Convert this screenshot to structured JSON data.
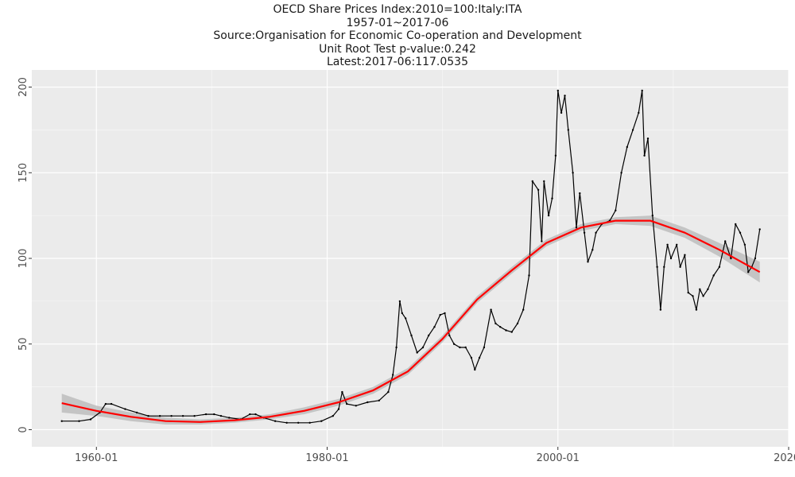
{
  "chart": {
    "title_lines": [
      "OECD Share Prices Index:2010=100:Italy:ITA",
      "1957-01~2017-06",
      "Source:Organisation for Economic Co-operation and Development",
      "Unit Root Test p-value:0.242",
      "Latest:2017-06:117.0535"
    ]
  },
  "colors": {
    "panel_background": "#ebebeb",
    "grid_major": "#ffffff",
    "series_line": "#000000",
    "trend_line": "#ff0000",
    "confidence_band": "#bdbdbd"
  },
  "chart_data": {
    "type": "line",
    "title": "OECD Share Prices Index:2010=100:Italy:ITA",
    "subtitle": [
      "1957-01~2017-06",
      "Source:Organisation for Economic Co-operation and Development",
      "Unit Root Test p-value:0.242",
      "Latest:2017-06:117.0535"
    ],
    "xlabel": "",
    "ylabel": "",
    "x_ticks": [
      "1960-01",
      "1980-01",
      "2000-01",
      "2020-"
    ],
    "x_tick_years": [
      1960,
      1980,
      2000,
      2020
    ],
    "y_ticks": [
      0,
      50,
      100,
      150,
      200
    ],
    "xlim": [
      1954.4,
      2020.0
    ],
    "ylim": [
      -10,
      210
    ],
    "grid": true,
    "legend": "none",
    "series": [
      {
        "kind": "monthly-index",
        "x": [
          1957.0,
          1958.5,
          1959.5,
          1960.3,
          1960.8,
          1961.3,
          1962.5,
          1963.5,
          1964.5,
          1965.5,
          1966.5,
          1967.5,
          1968.5,
          1969.5,
          1970.2,
          1970.8,
          1971.5,
          1972.5,
          1973.3,
          1973.8,
          1974.5,
          1975.5,
          1976.5,
          1977.5,
          1978.5,
          1979.5,
          1980.5,
          1981.0,
          1981.3,
          1981.7,
          1982.5,
          1983.5,
          1984.5,
          1985.3,
          1985.7,
          1986.0,
          1986.3,
          1986.5,
          1986.8,
          1987.3,
          1987.8,
          1988.3,
          1988.8,
          1989.3,
          1989.8,
          1990.2,
          1990.6,
          1991.0,
          1991.5,
          1992.0,
          1992.5,
          1992.8,
          1993.2,
          1993.6,
          1994.2,
          1994.6,
          1995.0,
          1995.5,
          1996.0,
          1996.5,
          1997.0,
          1997.5,
          1997.8,
          1998.3,
          1998.6,
          1998.8,
          1999.2,
          1999.5,
          1999.8,
          2000.0,
          2000.3,
          2000.6,
          2000.9,
          2001.3,
          2001.6,
          2001.9,
          2002.3,
          2002.6,
          2003.0,
          2003.3,
          2003.8,
          2004.5,
          2005.0,
          2005.5,
          2006.0,
          2006.5,
          2007.0,
          2007.3,
          2007.5,
          2007.8,
          2008.2,
          2008.6,
          2008.9,
          2009.2,
          2009.5,
          2009.8,
          2010.3,
          2010.6,
          2011.0,
          2011.3,
          2011.7,
          2012.0,
          2012.3,
          2012.6,
          2013.0,
          2013.5,
          2014.0,
          2014.5,
          2015.0,
          2015.4,
          2015.8,
          2016.2,
          2016.5,
          2016.8,
          2017.1,
          2017.5
        ],
        "values": [
          5,
          5,
          6,
          10,
          15,
          15,
          12,
          10,
          8,
          8,
          8,
          8,
          8,
          9,
          9,
          8,
          7,
          6,
          9,
          9,
          7,
          5,
          4,
          4,
          4,
          5,
          8,
          12,
          22,
          15,
          14,
          16,
          17,
          22,
          32,
          48,
          75,
          68,
          65,
          55,
          45,
          48,
          55,
          60,
          67,
          68,
          55,
          50,
          48,
          48,
          42,
          35,
          42,
          48,
          70,
          62,
          60,
          58,
          57,
          62,
          70,
          90,
          145,
          140,
          110,
          145,
          125,
          135,
          160,
          198,
          185,
          195,
          175,
          150,
          118,
          138,
          115,
          98,
          105,
          115,
          120,
          122,
          128,
          150,
          165,
          175,
          185,
          198,
          160,
          170,
          125,
          95,
          70,
          95,
          108,
          100,
          108,
          95,
          102,
          80,
          78,
          70,
          82,
          78,
          82,
          90,
          95,
          110,
          100,
          120,
          115,
          108,
          92,
          95,
          100,
          117
        ]
      },
      {
        "kind": "smooth-trend",
        "x": [
          1957,
          1960,
          1963,
          1966,
          1969,
          1972,
          1975,
          1978,
          1981,
          1984,
          1987,
          1990,
          1993,
          1996,
          1999,
          2002,
          2005,
          2008,
          2011,
          2014,
          2017.5
        ],
        "values": [
          15.5,
          11,
          7.5,
          5,
          4.5,
          5.5,
          7.5,
          11,
          16,
          23,
          34,
          53,
          76,
          93,
          109,
          118,
          122,
          122,
          115,
          105,
          92
        ],
        "band_low": [
          10,
          8,
          5,
          3,
          3,
          4,
          6,
          9,
          14,
          21,
          32,
          51,
          74,
          91,
          107,
          116,
          120,
          119,
          112,
          101,
          86
        ],
        "band_high": [
          21,
          14,
          10,
          7,
          6,
          7,
          9,
          13,
          18,
          25,
          36,
          55,
          78,
          95,
          111,
          120,
          124,
          125,
          118,
          109,
          98
        ]
      }
    ]
  }
}
